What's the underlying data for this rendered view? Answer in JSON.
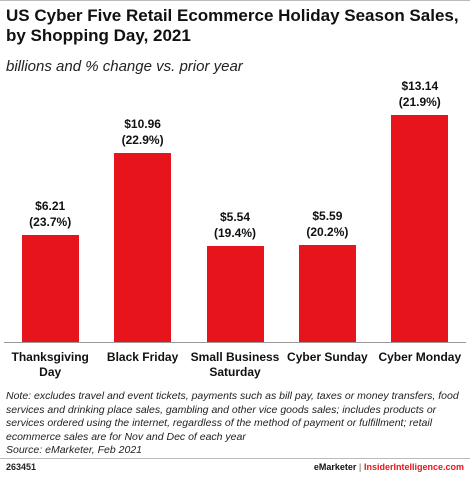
{
  "chart_data": {
    "type": "bar",
    "title": "US Cyber Five Retail Ecommerce Holiday Season Sales, by Shopping Day, 2021",
    "subtitle": "billions and % change vs. prior year",
    "categories": [
      "Thanksgiving Day",
      "Black Friday",
      "Small Business Saturday",
      "Cyber Sunday",
      "Cyber Monday"
    ],
    "values": [
      6.21,
      10.96,
      5.54,
      5.59,
      13.14
    ],
    "value_labels": [
      "$6.21",
      "$10.96",
      "$5.54",
      "$5.59",
      "$13.14"
    ],
    "changes": [
      23.7,
      22.9,
      19.4,
      20.2,
      21.9
    ],
    "change_labels": [
      "(23.7%)",
      "(22.9%)",
      "(19.4%)",
      "(20.2%)",
      "(21.9%)"
    ],
    "color": "#e8141c",
    "ylim": [
      0,
      14
    ]
  },
  "note": "Note: excludes travel and event tickets, payments such as bill pay, taxes or money transfers, food services and drinking place sales, gambling and other vice goods sales; includes products or services ordered using the internet, regardless of the method of payment or fulfillment; retail ecommerce sales are for Nov and Dec of each year",
  "source": "Source: eMarketer, Feb 2021",
  "footer": {
    "id": "263451",
    "brand": "eMarketer",
    "separator": "|",
    "site": "InsiderIntelligence.com"
  }
}
